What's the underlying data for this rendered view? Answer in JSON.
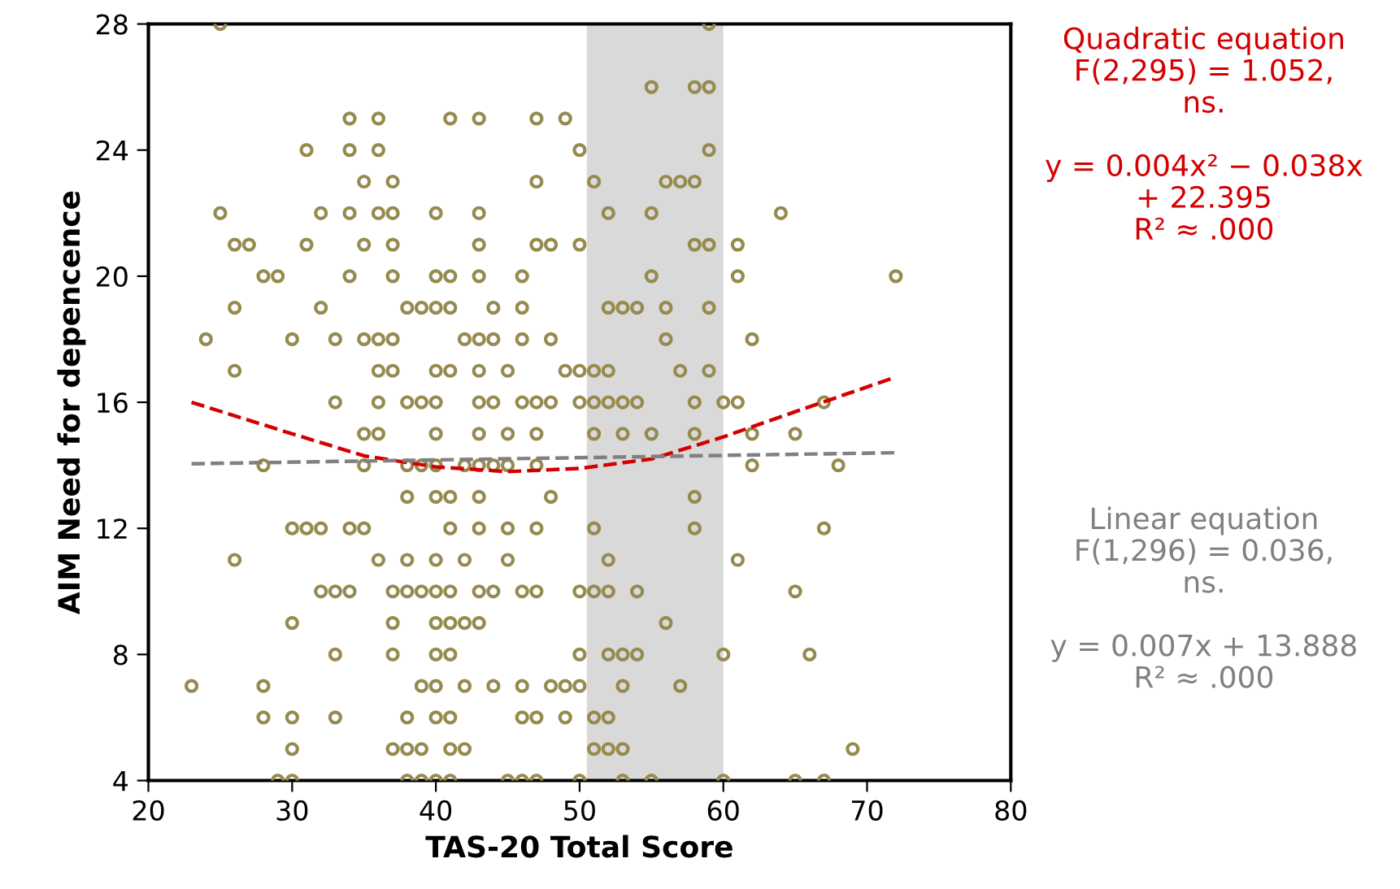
{
  "chart_data": {
    "type": "scatter",
    "xlabel": "TAS-20 Total Score",
    "ylabel": "AIM Need for depencence",
    "xlim": [
      20,
      80
    ],
    "xticks": [
      20,
      30,
      40,
      50,
      60,
      70,
      80
    ],
    "ylim": [
      4,
      28
    ],
    "yticks": [
      4,
      8,
      12,
      16,
      20,
      24,
      28
    ],
    "grid": false,
    "marker": "circle",
    "series": [
      {
        "color": "#968a4e",
        "x": [
          25,
          34,
          36,
          31,
          34,
          36,
          35,
          37,
          25,
          32,
          34,
          36,
          37,
          26,
          27,
          31,
          35,
          37,
          28,
          29,
          34,
          37,
          26,
          32,
          38,
          39,
          24,
          30,
          33,
          35,
          36,
          37,
          26,
          36,
          37,
          33,
          36,
          38,
          39,
          35,
          36,
          28,
          35,
          38,
          39,
          38,
          30,
          31,
          32,
          34,
          35,
          26,
          36,
          38,
          32,
          33,
          34,
          37,
          38,
          39,
          30,
          37,
          33,
          37,
          23,
          28,
          39,
          28,
          30,
          33,
          38,
          30,
          37,
          38,
          39,
          29,
          30,
          38,
          39,
          59,
          55,
          58,
          59,
          41,
          43,
          47,
          49,
          50,
          59,
          47,
          51,
          56,
          57,
          58,
          40,
          43,
          52,
          55,
          43,
          47,
          48,
          50,
          58,
          59,
          40,
          41,
          43,
          46,
          55,
          40,
          41,
          44,
          46,
          52,
          53,
          54,
          56,
          59,
          42,
          43,
          44,
          46,
          48,
          56,
          40,
          41,
          43,
          45,
          49,
          50,
          51,
          52,
          57,
          59,
          40,
          43,
          44,
          46,
          47,
          48,
          50,
          51,
          52,
          53,
          54,
          58,
          60,
          40,
          43,
          45,
          47,
          51,
          53,
          55,
          58,
          40,
          42,
          43,
          44,
          45,
          47,
          40,
          41,
          43,
          48,
          58,
          41,
          43,
          45,
          47,
          51,
          58,
          40,
          42,
          45,
          52,
          40,
          41,
          43,
          44,
          46,
          47,
          50,
          51,
          52,
          54,
          40,
          41,
          42,
          43,
          56,
          40,
          41,
          50,
          52,
          53,
          54,
          60,
          40,
          42,
          44,
          46,
          48,
          49,
          50,
          53,
          57,
          40,
          41,
          46,
          47,
          49,
          51,
          52,
          41,
          42,
          51,
          52,
          53,
          40,
          41,
          45,
          46,
          47,
          50,
          53,
          55,
          60,
          64,
          61,
          61,
          72,
          62,
          61,
          67,
          62,
          65,
          62,
          68,
          67,
          61,
          65,
          66,
          69,
          65,
          67
        ],
        "values": [
          28,
          25,
          25,
          24,
          24,
          24,
          23,
          23,
          22,
          22,
          22,
          22,
          22,
          21,
          21,
          21,
          21,
          21,
          20,
          20,
          20,
          20,
          19,
          19,
          19,
          19,
          18,
          18,
          18,
          18,
          18,
          18,
          17,
          17,
          17,
          16,
          16,
          16,
          16,
          15,
          15,
          14,
          14,
          14,
          14,
          13,
          12,
          12,
          12,
          12,
          12,
          11,
          11,
          11,
          10,
          10,
          10,
          10,
          10,
          10,
          9,
          9,
          8,
          8,
          7,
          7,
          7,
          6,
          6,
          6,
          6,
          5,
          5,
          5,
          5,
          4,
          4,
          4,
          4,
          28,
          26,
          26,
          26,
          25,
          25,
          25,
          25,
          24,
          24,
          23,
          23,
          23,
          23,
          23,
          22,
          22,
          22,
          22,
          21,
          21,
          21,
          21,
          21,
          21,
          20,
          20,
          20,
          20,
          20,
          19,
          19,
          19,
          19,
          19,
          19,
          19,
          19,
          19,
          18,
          18,
          18,
          18,
          18,
          18,
          17,
          17,
          17,
          17,
          17,
          17,
          17,
          17,
          17,
          17,
          16,
          16,
          16,
          16,
          16,
          16,
          16,
          16,
          16,
          16,
          16,
          16,
          16,
          15,
          15,
          15,
          15,
          15,
          15,
          15,
          15,
          14,
          14,
          14,
          14,
          14,
          14,
          13,
          13,
          13,
          13,
          13,
          12,
          12,
          12,
          12,
          12,
          12,
          11,
          11,
          11,
          11,
          10,
          10,
          10,
          10,
          10,
          10,
          10,
          10,
          10,
          10,
          9,
          9,
          9,
          9,
          9,
          8,
          8,
          8,
          8,
          8,
          8,
          8,
          7,
          7,
          7,
          7,
          7,
          7,
          7,
          7,
          7,
          6,
          6,
          6,
          6,
          6,
          6,
          6,
          5,
          5,
          5,
          5,
          5,
          4,
          4,
          4,
          4,
          4,
          4,
          4,
          4,
          4,
          22,
          21,
          20,
          20,
          18,
          16,
          16,
          15,
          15,
          14,
          14,
          12,
          11,
          10,
          8,
          5,
          4,
          4
        ]
      },
      {
        "type": "line",
        "color": "#d40000",
        "line_style": "dashed",
        "marker": "none",
        "x": [
          23,
          30,
          35,
          40,
          45,
          50,
          55,
          60,
          65,
          72
        ],
        "values": [
          16.0,
          15.0,
          14.3,
          13.95,
          13.8,
          13.9,
          14.2,
          14.9,
          15.7,
          16.8
        ]
      },
      {
        "type": "line",
        "color": "#808080",
        "line_style": "dashed",
        "marker": "none",
        "x": [
          23,
          72
        ],
        "values": [
          14.05,
          14.4
        ]
      }
    ],
    "bands": [
      {
        "axis": "x",
        "from": 50.5,
        "to": 60,
        "color": "#d9d9d9"
      }
    ],
    "annotations": [
      "Quadratic equation\nF(2,295) = 1.052,\nns.\n\ny = 0.004x² − 0.038x\n+ 22.395\nR² ≈ .000",
      "Linear equation\nF(1,296) = 0.036,\nns.\n\ny = 0.007x + 13.888\nR² ≈ .000"
    ]
  }
}
